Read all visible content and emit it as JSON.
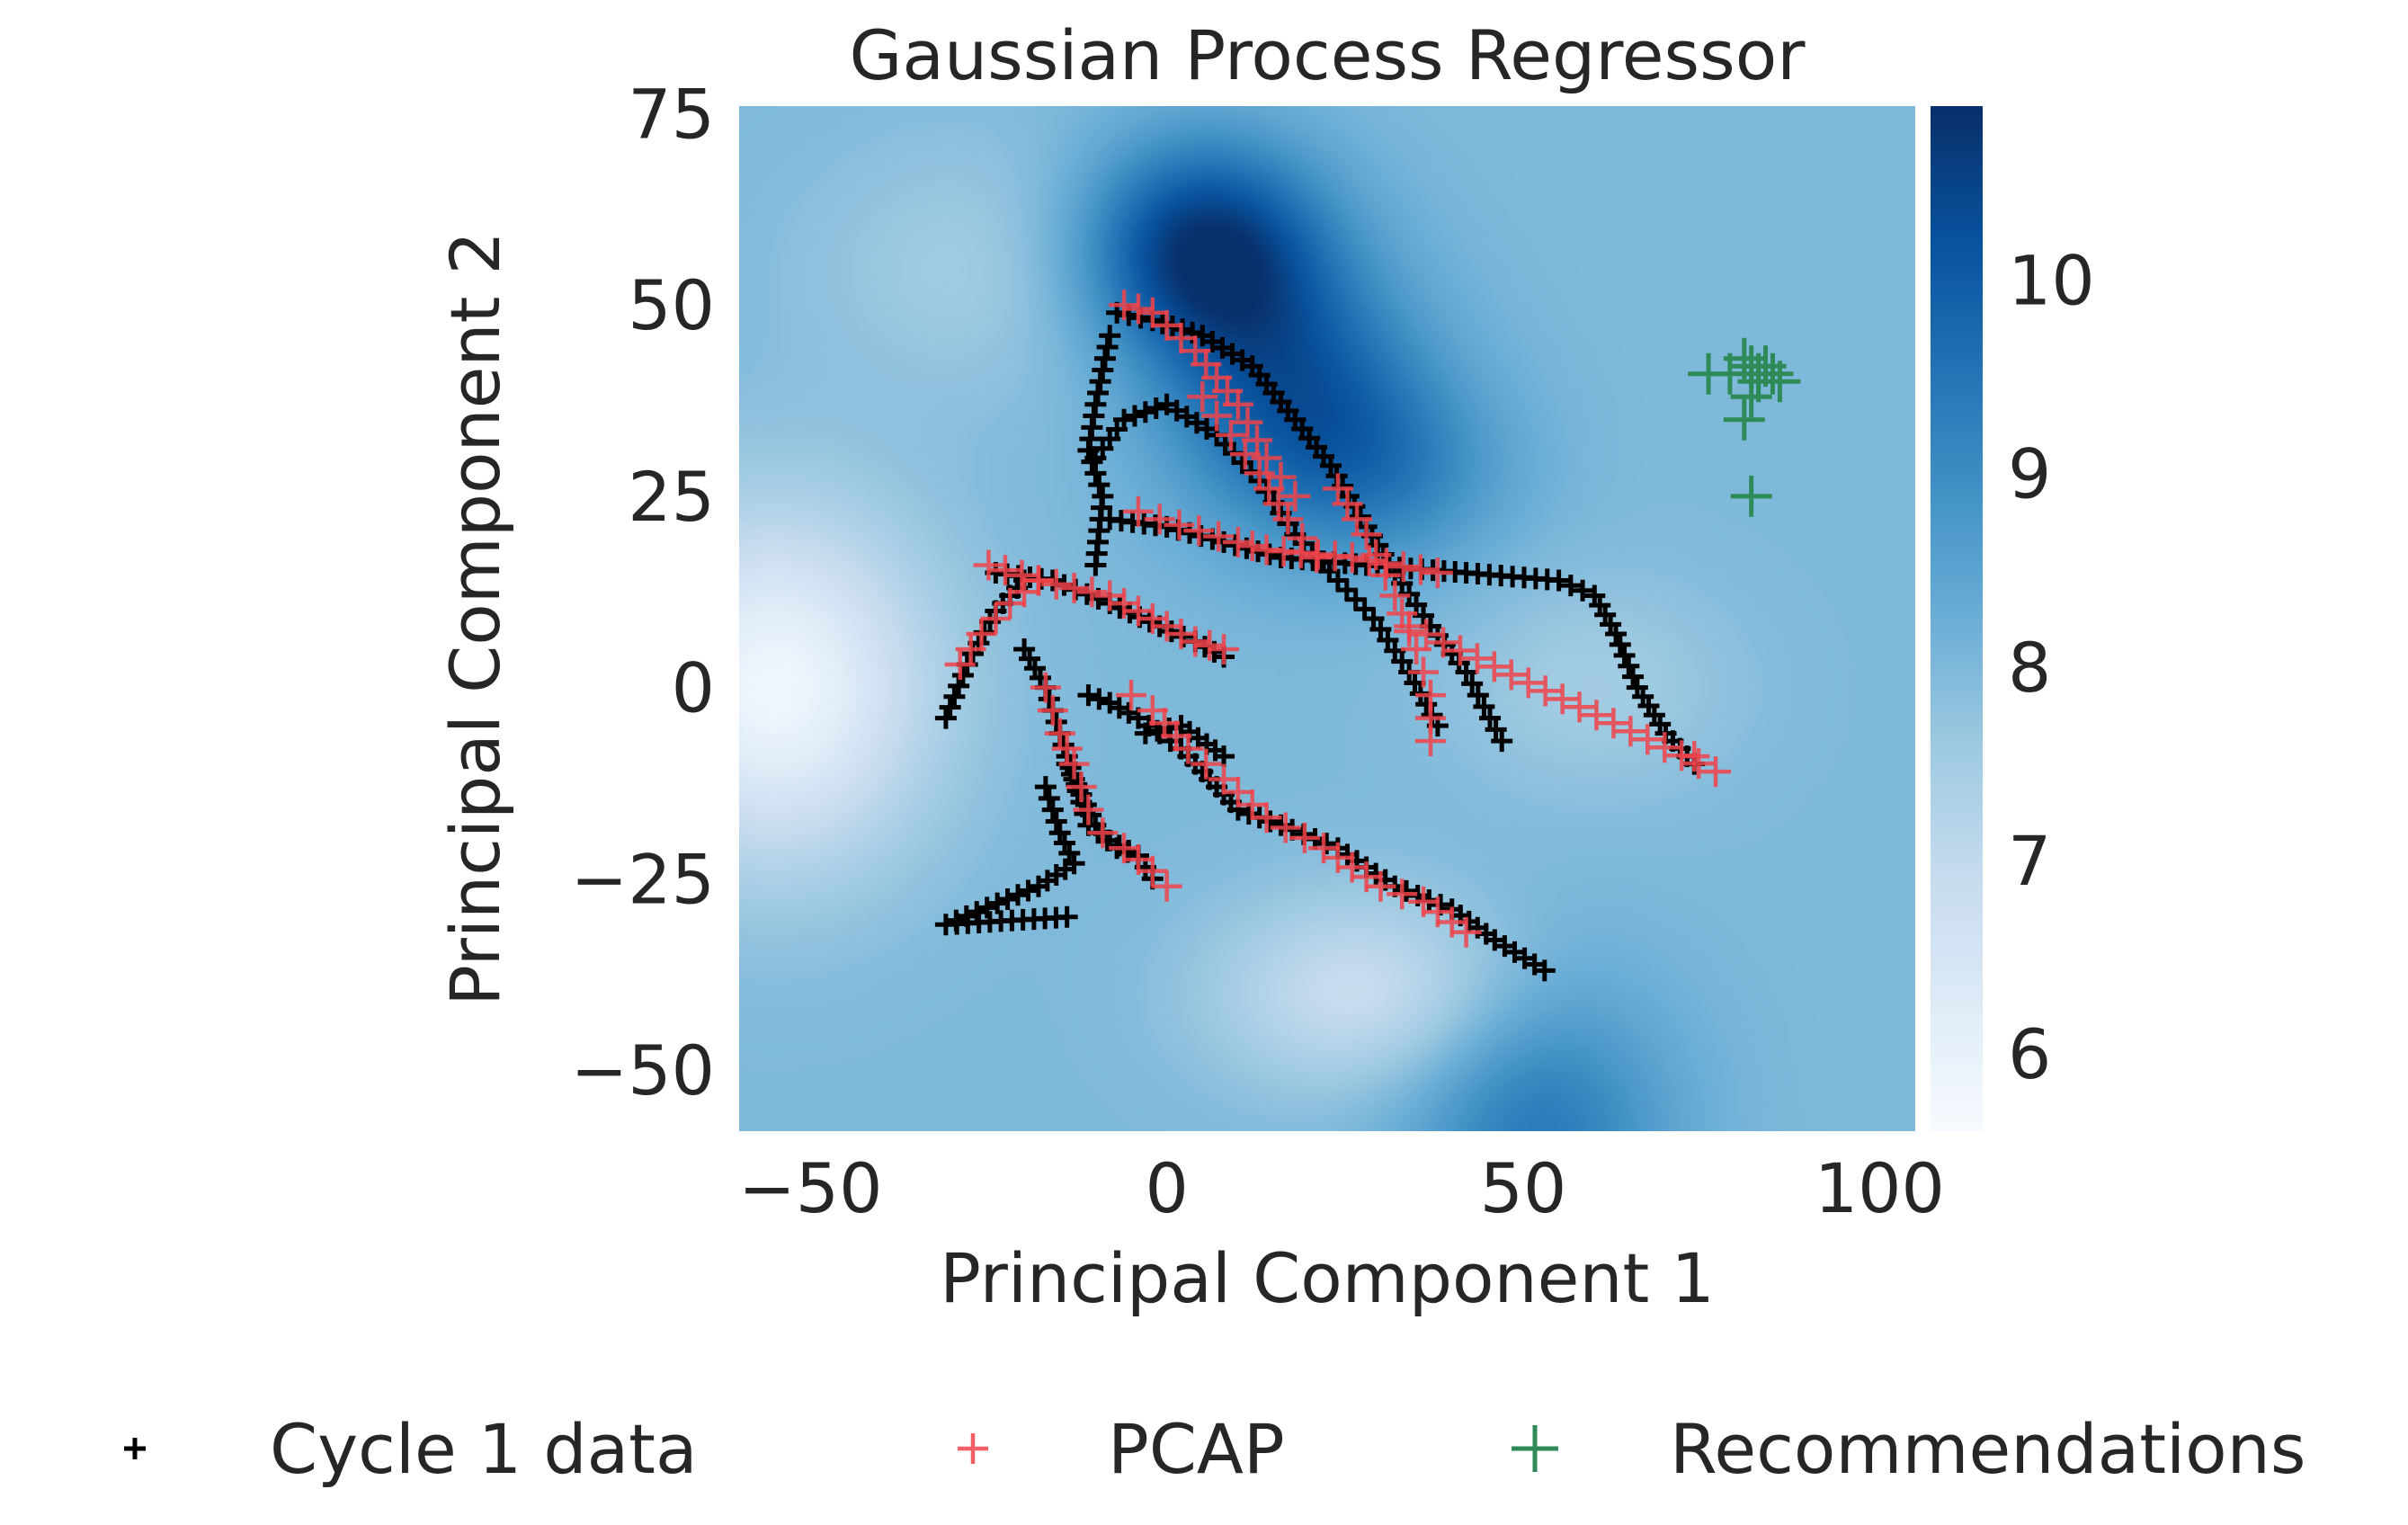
{
  "chart_data": {
    "type": "scatter",
    "title": "Gaussian Process Regressor",
    "xlabel": "Principal Component 1",
    "ylabel": "Principal Component 2",
    "xlim": [
      -60,
      105
    ],
    "ylim": [
      -58,
      76
    ],
    "x_ticks": [
      {
        "value": -50,
        "label": "−50"
      },
      {
        "value": 0,
        "label": "0"
      },
      {
        "value": 50,
        "label": "50"
      },
      {
        "value": 100,
        "label": "100"
      }
    ],
    "y_ticks": [
      {
        "value": 75,
        "label": "75"
      },
      {
        "value": 50,
        "label": "50"
      },
      {
        "value": 25,
        "label": "25"
      },
      {
        "value": 0,
        "label": "0"
      },
      {
        "value": -25,
        "label": "−25"
      },
      {
        "value": -50,
        "label": "−50"
      }
    ],
    "grid": false,
    "legend_position": "bottom",
    "colorbar": {
      "colormap": "Blues",
      "range": [
        5.6,
        10.9
      ],
      "ticks": [
        {
          "value": 10,
          "label": "10"
        },
        {
          "value": 9,
          "label": "9"
        },
        {
          "value": 8,
          "label": "8"
        },
        {
          "value": 7,
          "label": "7"
        },
        {
          "value": 6,
          "label": "6"
        }
      ]
    },
    "background_field": {
      "description_values": "GP predicted mean (colormap units)",
      "base": 8.0,
      "bumps": [
        {
          "x": 5,
          "y": 57,
          "sx": 12,
          "sy": 10,
          "a": 2.9
        },
        {
          "x": 18,
          "y": 38,
          "sx": 13,
          "sy": 12,
          "a": 1.9
        },
        {
          "x": 32,
          "y": 28,
          "sx": 12,
          "sy": 9,
          "a": 0.9
        },
        {
          "x": 52,
          "y": -58,
          "sx": 13,
          "sy": 14,
          "a": 1.4
        },
        {
          "x": -55,
          "y": 0,
          "sx": 15,
          "sy": 16,
          "a": -2.2
        },
        {
          "x": 28,
          "y": -40,
          "sx": 15,
          "sy": 9,
          "a": -1.2
        },
        {
          "x": 60,
          "y": 0,
          "sx": 14,
          "sy": 10,
          "a": -0.5
        },
        {
          "x": -25,
          "y": 55,
          "sx": 18,
          "sy": 12,
          "a": -0.5
        }
      ]
    },
    "series": [
      {
        "name": "Cycle 1 data",
        "color": "#000000",
        "marker": "plus-small",
        "trajectories": [
          [
            [
              -7,
              49
            ],
            [
              -2,
              48
            ],
            [
              5,
              46
            ],
            [
              12,
              42
            ],
            [
              18,
              35
            ],
            [
              23,
              29
            ],
            [
              28,
              21
            ],
            [
              32,
              15
            ],
            [
              37,
              8
            ],
            [
              42,
              2
            ],
            [
              47,
              -7
            ]
          ],
          [
            [
              -10,
              30
            ],
            [
              -6,
              35
            ],
            [
              0,
              37
            ],
            [
              7,
              33
            ],
            [
              13,
              27
            ],
            [
              18,
              20
            ],
            [
              24,
              14
            ],
            [
              29,
              9
            ],
            [
              34,
              2
            ],
            [
              38,
              -5
            ]
          ],
          [
            [
              -8,
              22
            ],
            [
              0,
              21
            ],
            [
              8,
              19
            ],
            [
              16,
              17
            ],
            [
              28,
              16
            ],
            [
              42,
              15
            ],
            [
              55,
              14
            ],
            [
              60,
              12
            ],
            [
              63,
              7
            ],
            [
              66,
              0
            ],
            [
              70,
              -6
            ],
            [
              74,
              -10
            ]
          ],
          [
            [
              -24,
              15
            ],
            [
              -16,
              14
            ],
            [
              -8,
              11
            ],
            [
              -1,
              8
            ],
            [
              4,
              6
            ],
            [
              8,
              4
            ]
          ],
          [
            [
              -31,
              -4
            ],
            [
              -28,
              3
            ],
            [
              -24,
              10
            ],
            [
              -20,
              14
            ]
          ],
          [
            [
              -20,
              5
            ],
            [
              -17,
              0
            ],
            [
              -15,
              -6
            ],
            [
              -13,
              -12
            ],
            [
              -11,
              -18
            ],
            [
              -7,
              -21
            ],
            [
              -4,
              -22
            ]
          ],
          [
            [
              -11,
              -1
            ],
            [
              -8,
              -2
            ],
            [
              -4,
              -4
            ],
            [
              -1,
              -6
            ],
            [
              2,
              -8
            ],
            [
              6,
              -12
            ],
            [
              10,
              -16
            ],
            [
              16,
              -18
            ],
            [
              24,
              -21
            ],
            [
              32,
              -26
            ],
            [
              40,
              -29
            ],
            [
              46,
              -33
            ],
            [
              53,
              -37
            ]
          ],
          [
            [
              -14,
              -10
            ],
            [
              -12,
              -14
            ],
            [
              -10,
              -18
            ],
            [
              -8,
              -20
            ],
            [
              -4,
              -22
            ],
            [
              -2,
              -25
            ]
          ],
          [
            [
              -8,
              46
            ],
            [
              -10,
              37
            ],
            [
              -11,
              31
            ],
            [
              -9,
              25
            ],
            [
              -10,
              16
            ]
          ],
          [
            [
              -17,
              -13
            ],
            [
              -15,
              -19
            ],
            [
              -13,
              -23
            ],
            [
              -18,
              -26
            ],
            [
              -31,
              -31
            ],
            [
              -14,
              -30
            ]
          ],
          [
            [
              -3,
              -6
            ],
            [
              2,
              -5
            ],
            [
              8,
              -9
            ]
          ]
        ]
      },
      {
        "name": "PCAP",
        "color": "#f0434a",
        "marker": "plus",
        "trajectories": [
          [
            [
              -6,
              50
            ],
            [
              -2,
              49
            ],
            [
              4,
              44
            ],
            [
              10,
              37
            ],
            [
              14,
              30
            ],
            [
              18,
              25
            ]
          ],
          [
            [
              5,
              38
            ],
            [
              9,
              33
            ],
            [
              13,
              28
            ],
            [
              17,
              22
            ],
            [
              21,
              17
            ]
          ],
          [
            [
              -4,
              23
            ],
            [
              -1,
              22
            ],
            [
              10,
              19
            ],
            [
              14,
              18
            ],
            [
              26,
              17
            ],
            [
              38,
              15
            ]
          ],
          [
            [
              -25,
              16
            ],
            [
              -18,
              14
            ],
            [
              -8,
              12
            ],
            [
              -2,
              9
            ],
            [
              4,
              6
            ],
            [
              8,
              5
            ]
          ],
          [
            [
              -29,
              3
            ],
            [
              -26,
              7
            ],
            [
              -22,
              11
            ],
            [
              -18,
              14
            ]
          ],
          [
            [
              -17,
              0
            ],
            [
              -15,
              -6
            ],
            [
              -13,
              -10
            ],
            [
              -11,
              -16
            ],
            [
              -9,
              -19
            ],
            [
              -6,
              -21
            ],
            [
              -2,
              -24
            ],
            [
              0,
              -26
            ]
          ],
          [
            [
              -5,
              -1
            ],
            [
              -2,
              -3
            ],
            [
              3,
              -8
            ],
            [
              8,
              -12
            ],
            [
              14,
              -17
            ],
            [
              22,
              -21
            ],
            [
              30,
              -26
            ],
            [
              36,
              -28
            ],
            [
              42,
              -32
            ]
          ],
          [
            [
              24,
              26
            ],
            [
              28,
              20
            ],
            [
              32,
              12
            ],
            [
              35,
              5
            ],
            [
              37,
              -1
            ],
            [
              37,
              -7
            ]
          ],
          [
            [
              74,
              -9
            ],
            [
              77,
              -11
            ],
            [
              34,
              8
            ]
          ]
        ]
      },
      {
        "name": "Recommendations",
        "color": "#2e8b57",
        "marker": "plus-large",
        "points": [
          [
            76,
            41
          ],
          [
            79,
            41
          ],
          [
            81,
            43
          ],
          [
            82,
            42
          ],
          [
            83,
            40
          ],
          [
            83,
            41
          ],
          [
            84,
            42
          ],
          [
            85,
            41
          ],
          [
            86,
            40
          ],
          [
            82,
            38
          ],
          [
            81,
            35
          ],
          [
            82,
            25
          ]
        ]
      }
    ]
  }
}
